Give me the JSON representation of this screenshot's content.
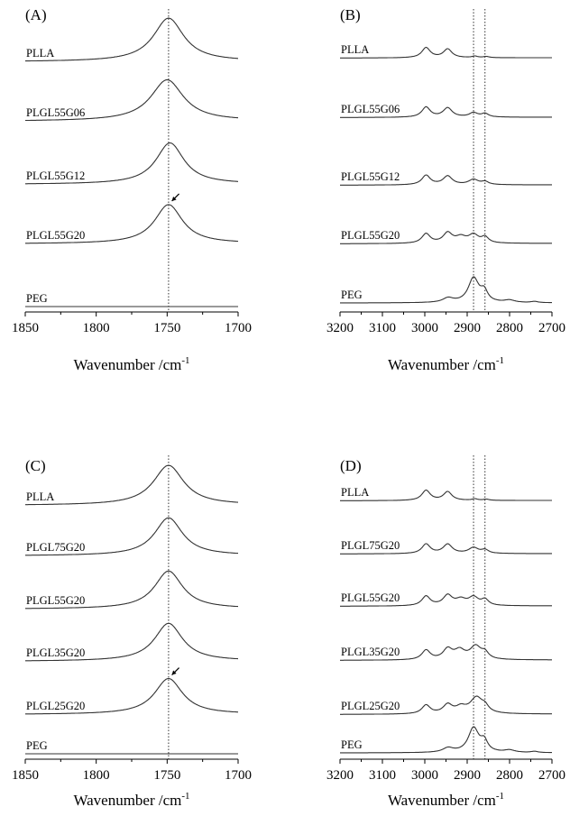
{
  "chart_data": [
    {
      "panel_label": "(A)",
      "type": "line",
      "xlabel": "Wavenumber /cm",
      "xlabel_sup": "-1",
      "xlim": [
        1850,
        1700
      ],
      "x_reversed": true,
      "xticks": [
        1850,
        1800,
        1750,
        1700
      ],
      "grid": false,
      "reference_lines_x": [
        1749
      ],
      "series": [
        {
          "name": "PLLA",
          "profile": [
            {
              "center": 1749,
              "width": 13,
              "amplitude": 1.0
            }
          ],
          "baseline_slope": 0.05
        },
        {
          "name": "PLGL55G06",
          "profile": [
            {
              "center": 1750,
              "width": 14,
              "amplitude": 0.95
            }
          ],
          "baseline_slope": 0.05
        },
        {
          "name": "PLGL55G12",
          "profile": [
            {
              "center": 1748,
              "width": 12,
              "amplitude": 0.95
            }
          ],
          "baseline_slope": 0.05
        },
        {
          "name": "PLGL55G20",
          "profile": [
            {
              "center": 1749,
              "width": 12,
              "amplitude": 0.9
            }
          ],
          "baseline_slope": 0.05,
          "arrow_at": 1749
        },
        {
          "name": "PEG",
          "profile": [],
          "baseline_slope": 0.0
        }
      ]
    },
    {
      "panel_label": "(B)",
      "type": "line",
      "xlabel": "Wavenumber /cm",
      "xlabel_sup": "-1",
      "xlim": [
        3200,
        2700
      ],
      "x_reversed": true,
      "xticks": [
        3200,
        3100,
        3000,
        2900,
        2800,
        2700
      ],
      "grid": false,
      "reference_lines_x": [
        2885,
        2858
      ],
      "series": [
        {
          "name": "PLLA",
          "profile": [
            {
              "center": 2997,
              "width": 12,
              "amplitude": 0.35
            },
            {
              "center": 2946,
              "width": 12,
              "amplitude": 0.3
            },
            {
              "center": 2882,
              "width": 8,
              "amplitude": 0.05
            },
            {
              "center": 2855,
              "width": 8,
              "amplitude": 0.04
            }
          ],
          "baseline_slope": 0.05
        },
        {
          "name": "PLGL55G06",
          "profile": [
            {
              "center": 2997,
              "width": 12,
              "amplitude": 0.35
            },
            {
              "center": 2946,
              "width": 13,
              "amplitude": 0.32
            },
            {
              "center": 2885,
              "width": 12,
              "amplitude": 0.15
            },
            {
              "center": 2858,
              "width": 10,
              "amplitude": 0.12
            }
          ],
          "baseline_slope": 0.05
        },
        {
          "name": "PLGL55G12",
          "profile": [
            {
              "center": 2997,
              "width": 12,
              "amplitude": 0.33
            },
            {
              "center": 2946,
              "width": 13,
              "amplitude": 0.3
            },
            {
              "center": 2885,
              "width": 14,
              "amplitude": 0.18
            },
            {
              "center": 2858,
              "width": 10,
              "amplitude": 0.1
            }
          ],
          "baseline_slope": 0.05
        },
        {
          "name": "PLGL55G20",
          "profile": [
            {
              "center": 2997,
              "width": 12,
              "amplitude": 0.33
            },
            {
              "center": 2946,
              "width": 13,
              "amplitude": 0.35
            },
            {
              "center": 2915,
              "width": 15,
              "amplitude": 0.2
            },
            {
              "center": 2885,
              "width": 14,
              "amplitude": 0.28
            },
            {
              "center": 2858,
              "width": 10,
              "amplitude": 0.2
            }
          ],
          "baseline_slope": 0.05
        },
        {
          "name": "PEG",
          "profile": [
            {
              "center": 2945,
              "width": 15,
              "amplitude": 0.15
            },
            {
              "center": 2885,
              "width": 15,
              "amplitude": 0.85
            },
            {
              "center": 2860,
              "width": 10,
              "amplitude": 0.35
            },
            {
              "center": 2800,
              "width": 15,
              "amplitude": 0.08
            },
            {
              "center": 2741,
              "width": 10,
              "amplitude": 0.04
            }
          ],
          "baseline_slope": 0.0
        }
      ]
    },
    {
      "panel_label": "(C)",
      "type": "line",
      "xlabel": "Wavenumber /cm",
      "xlabel_sup": "-1",
      "xlim": [
        1850,
        1700
      ],
      "x_reversed": true,
      "xticks": [
        1850,
        1800,
        1750,
        1700
      ],
      "grid": false,
      "reference_lines_x": [
        1749
      ],
      "series": [
        {
          "name": "PLLA",
          "profile": [
            {
              "center": 1749,
              "width": 13,
              "amplitude": 1.0
            }
          ],
          "baseline_slope": 0.05
        },
        {
          "name": "PLGL75G20",
          "profile": [
            {
              "center": 1749,
              "width": 12,
              "amplitude": 0.95
            }
          ],
          "baseline_slope": 0.05
        },
        {
          "name": "PLGL55G20",
          "profile": [
            {
              "center": 1749,
              "width": 12,
              "amplitude": 0.95
            }
          ],
          "baseline_slope": 0.05
        },
        {
          "name": "PLGL35G20",
          "profile": [
            {
              "center": 1749,
              "width": 12,
              "amplitude": 0.95
            }
          ],
          "baseline_slope": 0.05
        },
        {
          "name": "PLGL25G20",
          "profile": [
            {
              "center": 1749,
              "width": 12,
              "amplitude": 0.9
            }
          ],
          "baseline_slope": 0.05,
          "arrow_at": 1749
        },
        {
          "name": "PEG",
          "profile": [],
          "baseline_slope": 0.0
        }
      ]
    },
    {
      "panel_label": "(D)",
      "type": "line",
      "xlabel": "Wavenumber /cm",
      "xlabel_sup": "-1",
      "xlim": [
        3200,
        2700
      ],
      "x_reversed": true,
      "xticks": [
        3200,
        3100,
        3000,
        2900,
        2800,
        2700
      ],
      "grid": false,
      "reference_lines_x": [
        2885,
        2858
      ],
      "series": [
        {
          "name": "PLLA",
          "profile": [
            {
              "center": 2997,
              "width": 12,
              "amplitude": 0.35
            },
            {
              "center": 2946,
              "width": 12,
              "amplitude": 0.3
            },
            {
              "center": 2882,
              "width": 8,
              "amplitude": 0.05
            },
            {
              "center": 2855,
              "width": 8,
              "amplitude": 0.04
            }
          ],
          "baseline_slope": 0.05
        },
        {
          "name": "PLGL75G20",
          "profile": [
            {
              "center": 2997,
              "width": 12,
              "amplitude": 0.33
            },
            {
              "center": 2946,
              "width": 13,
              "amplitude": 0.32
            },
            {
              "center": 2885,
              "width": 14,
              "amplitude": 0.2
            },
            {
              "center": 2858,
              "width": 10,
              "amplitude": 0.12
            }
          ],
          "baseline_slope": 0.05
        },
        {
          "name": "PLGL55G20",
          "profile": [
            {
              "center": 2997,
              "width": 12,
              "amplitude": 0.33
            },
            {
              "center": 2946,
              "width": 13,
              "amplitude": 0.35
            },
            {
              "center": 2915,
              "width": 15,
              "amplitude": 0.2
            },
            {
              "center": 2885,
              "width": 14,
              "amplitude": 0.28
            },
            {
              "center": 2858,
              "width": 10,
              "amplitude": 0.2
            }
          ],
          "baseline_slope": 0.05
        },
        {
          "name": "PLGL35G20",
          "profile": [
            {
              "center": 2997,
              "width": 12,
              "amplitude": 0.33
            },
            {
              "center": 2946,
              "width": 13,
              "amplitude": 0.35
            },
            {
              "center": 2918,
              "width": 15,
              "amplitude": 0.3
            },
            {
              "center": 2880,
              "width": 16,
              "amplitude": 0.45
            },
            {
              "center": 2858,
              "width": 10,
              "amplitude": 0.2
            }
          ],
          "baseline_slope": 0.05
        },
        {
          "name": "PLGL25G20",
          "profile": [
            {
              "center": 2997,
              "width": 12,
              "amplitude": 0.3
            },
            {
              "center": 2946,
              "width": 13,
              "amplitude": 0.3
            },
            {
              "center": 2915,
              "width": 15,
              "amplitude": 0.2
            },
            {
              "center": 2878,
              "width": 18,
              "amplitude": 0.55
            },
            {
              "center": 2858,
              "width": 10,
              "amplitude": 0.18
            }
          ],
          "baseline_slope": 0.05
        },
        {
          "name": "PEG",
          "profile": [
            {
              "center": 2945,
              "width": 15,
              "amplitude": 0.15
            },
            {
              "center": 2885,
              "width": 15,
              "amplitude": 0.85
            },
            {
              "center": 2860,
              "width": 10,
              "amplitude": 0.35
            },
            {
              "center": 2800,
              "width": 15,
              "amplitude": 0.08
            },
            {
              "center": 2741,
              "width": 10,
              "amplitude": 0.04
            }
          ],
          "baseline_slope": 0.0
        }
      ]
    }
  ]
}
